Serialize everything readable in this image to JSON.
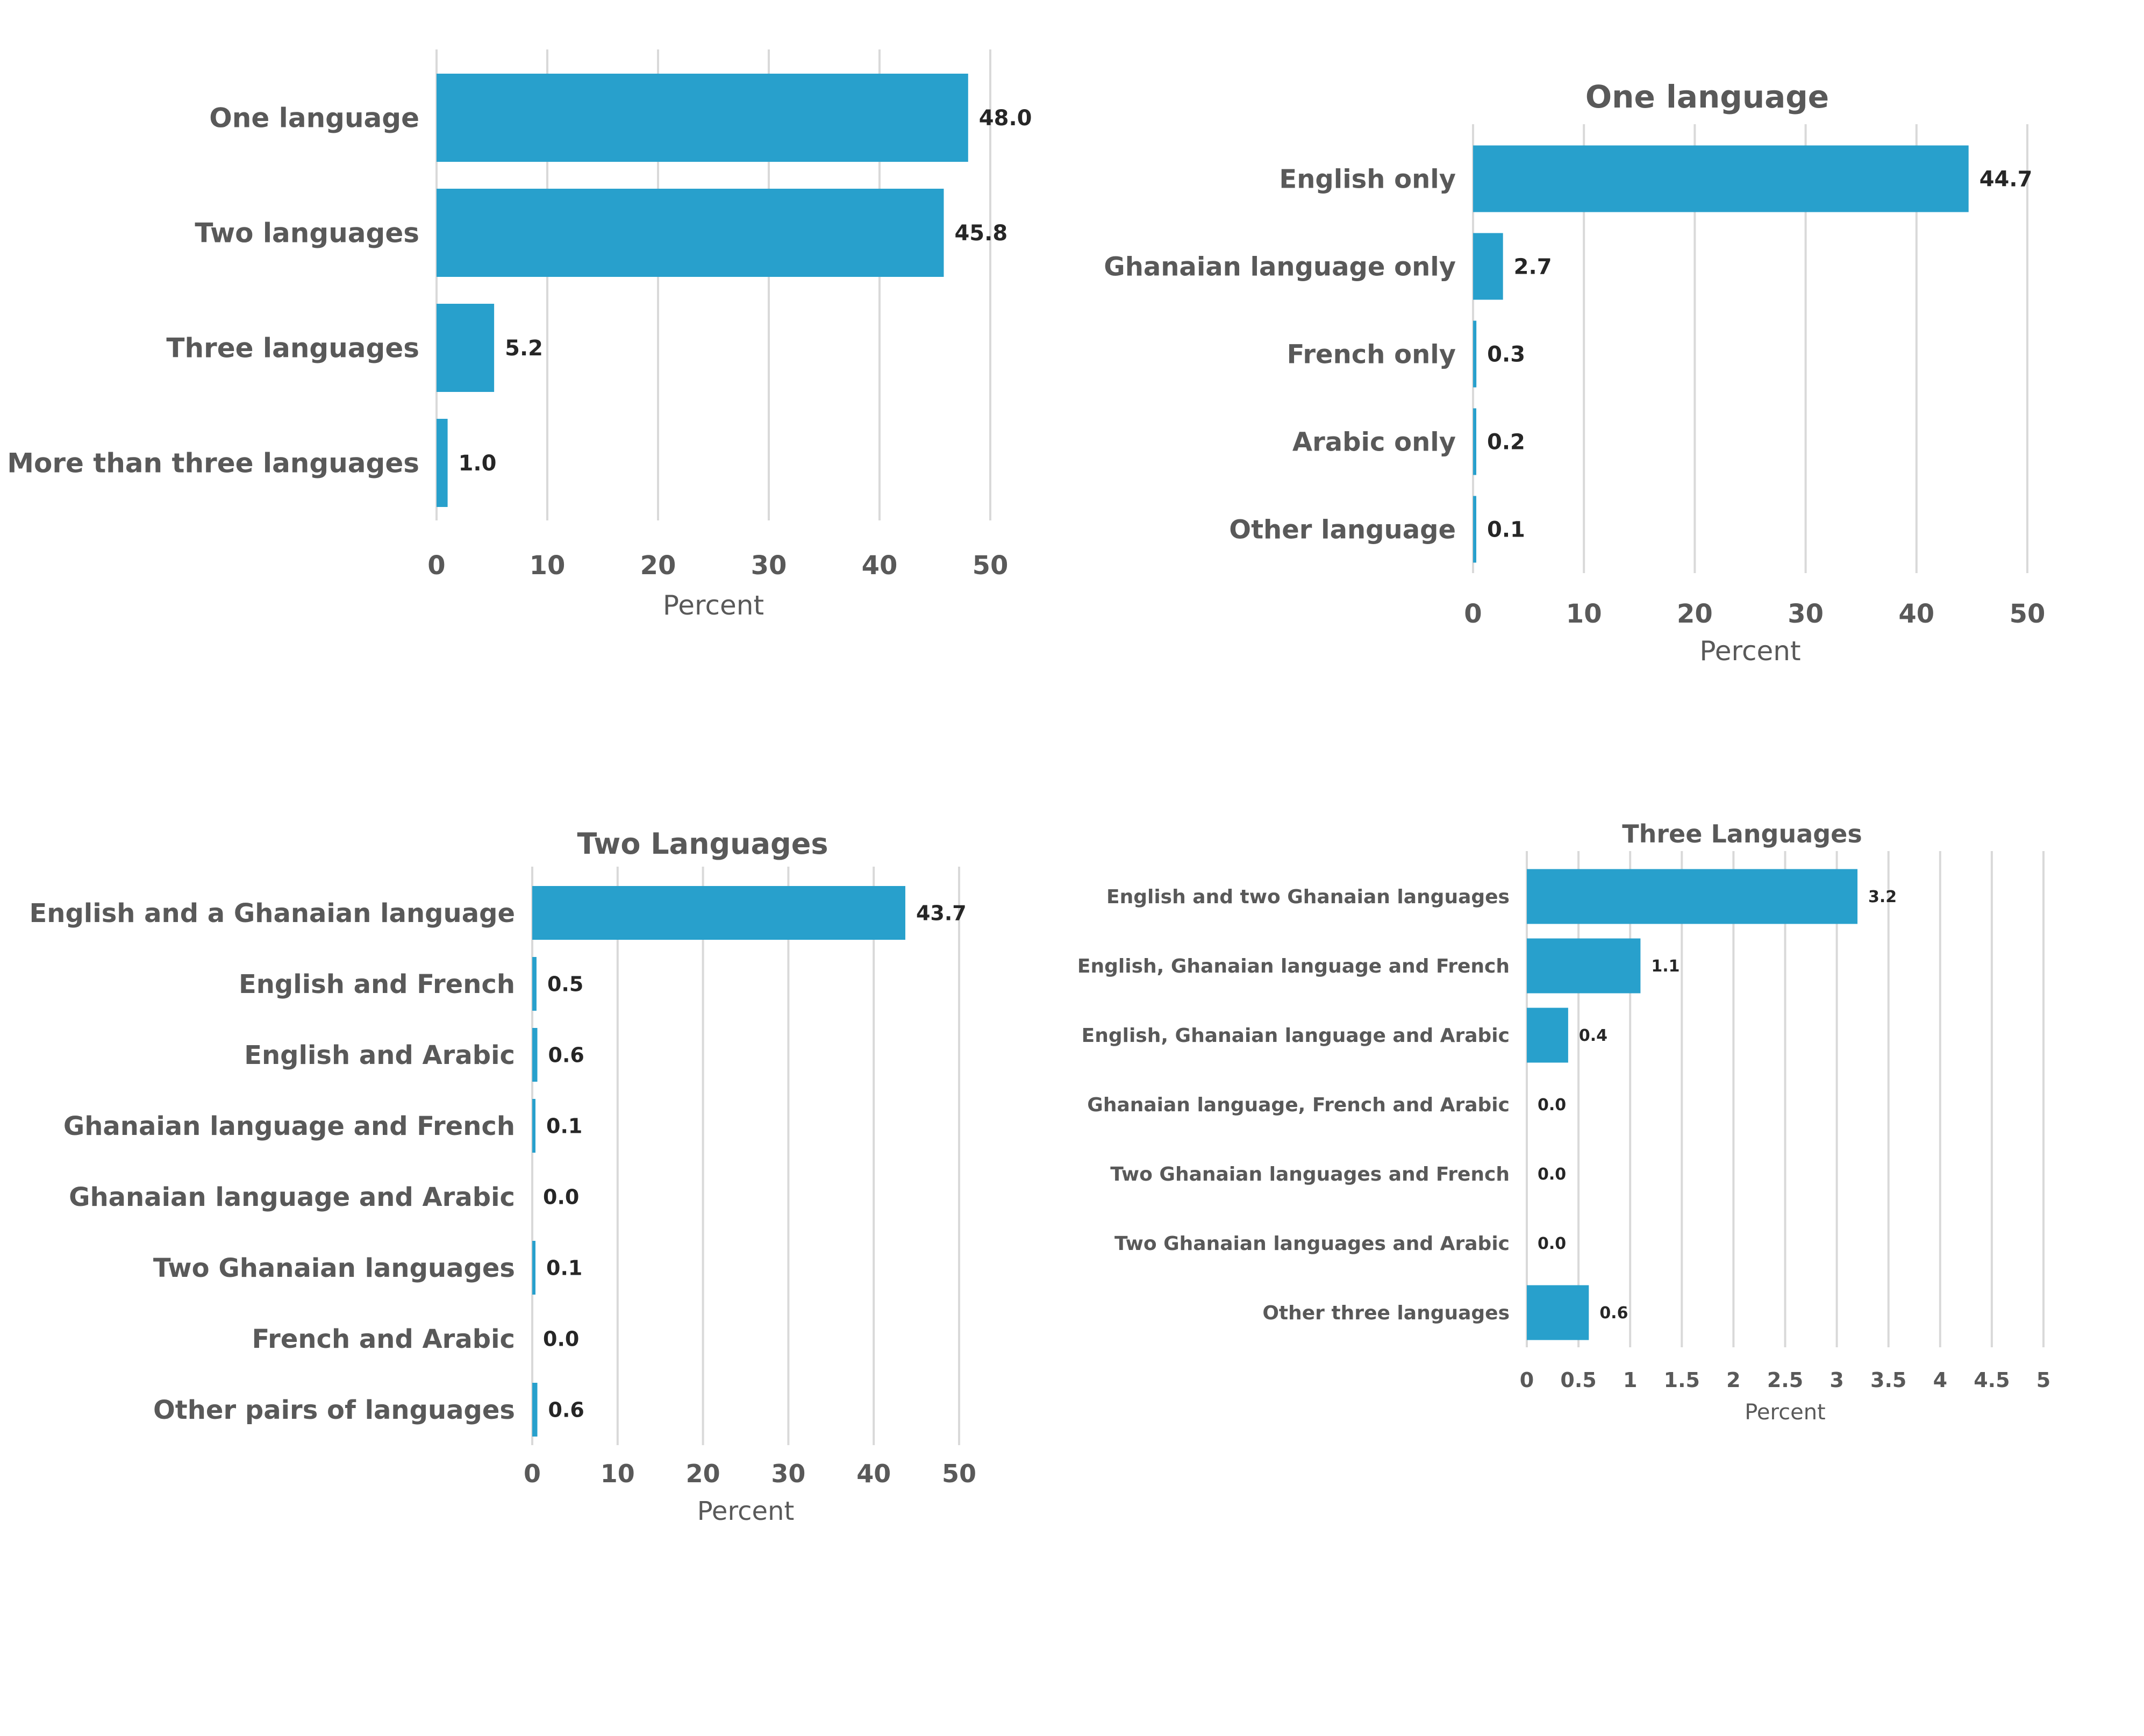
{
  "colors": {
    "bar": "#28a0cc",
    "grid": "#d9d9d9",
    "label": "#595959",
    "value": "#262626"
  },
  "chart_data": [
    {
      "type": "bar",
      "orientation": "horizontal",
      "title": "",
      "xlabel": "Percent",
      "ylabel": "",
      "categories": [
        "One language",
        "Two languages",
        "Three languages",
        "More than three languages"
      ],
      "values": [
        48.0,
        45.8,
        5.2,
        1.0
      ],
      "value_labels": [
        "48.0",
        "45.8",
        "5.2",
        "1.0"
      ],
      "xlim": [
        0,
        50
      ],
      "xticks": [
        "0",
        "10",
        "20",
        "30",
        "40",
        "50"
      ],
      "grid": true,
      "legend": "none"
    },
    {
      "type": "bar",
      "orientation": "horizontal",
      "title": "One language",
      "xlabel": "Percent",
      "ylabel": "",
      "categories": [
        "English only",
        "Ghanaian language only",
        "French only",
        "Arabic only",
        "Other language"
      ],
      "values": [
        44.7,
        2.7,
        0.3,
        0.2,
        0.1
      ],
      "value_labels": [
        "44.7",
        "2.7",
        "0.3",
        "0.2",
        "0.1"
      ],
      "xlim": [
        0,
        50
      ],
      "xticks": [
        "0",
        "10",
        "20",
        "30",
        "40",
        "50"
      ],
      "grid": true,
      "legend": "none"
    },
    {
      "type": "bar",
      "orientation": "horizontal",
      "title": "Two Languages",
      "xlabel": "Percent",
      "ylabel": "",
      "categories": [
        "English and a Ghanaian language",
        "English and French",
        "English and Arabic",
        "Ghanaian language and French",
        "Ghanaian language and Arabic",
        "Two Ghanaian languages",
        "French and Arabic",
        "Other pairs of languages"
      ],
      "values": [
        43.7,
        0.5,
        0.6,
        0.1,
        0.0,
        0.1,
        0.0,
        0.6
      ],
      "value_labels": [
        "43.7",
        "0.5",
        "0.6",
        "0.1",
        "0.0",
        "0.1",
        "0.0",
        "0.6"
      ],
      "xlim": [
        0,
        50
      ],
      "xticks": [
        "0",
        "10",
        "20",
        "30",
        "40",
        "50"
      ],
      "grid": true,
      "legend": "none"
    },
    {
      "type": "bar",
      "orientation": "horizontal",
      "title": "Three Languages",
      "xlabel": "Percent",
      "ylabel": "",
      "categories": [
        "English and two Ghanaian languages",
        "English, Ghanaian language and French",
        "English, Ghanaian language and Arabic",
        "Ghanaian language, French and Arabic",
        "Two Ghanaian languages and French",
        "Two Ghanaian languages and Arabic",
        "Other three languages"
      ],
      "values": [
        3.2,
        1.1,
        0.4,
        0.0,
        0.0,
        0.0,
        0.6
      ],
      "value_labels": [
        "3.2",
        "1.1",
        "0.4",
        "0.0",
        "0.0",
        "0.0",
        "0.6"
      ],
      "xlim": [
        0,
        5
      ],
      "xticks": [
        "0",
        "0.5",
        "1",
        "1.5",
        "2",
        "2.5",
        "3",
        "3.5",
        "4",
        "4.5",
        "5"
      ],
      "grid": true,
      "legend": "none"
    }
  ]
}
